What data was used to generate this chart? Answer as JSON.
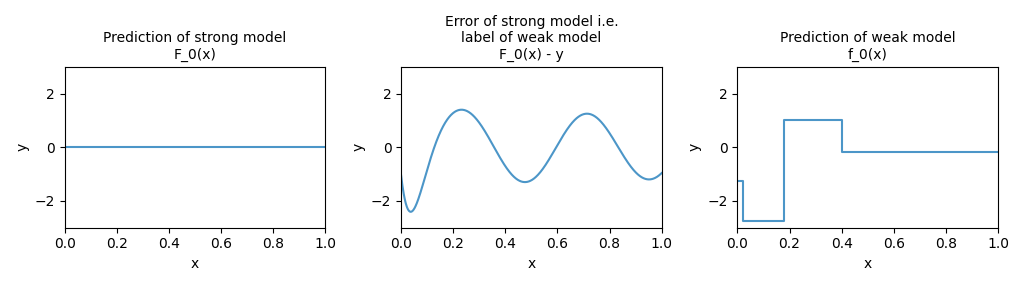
{
  "title1": "Prediction of strong model\nF_0(x)",
  "title2": "Error of strong model i.e.\nlabel of weak model\nF_0(x) - y",
  "title3": "Prediction of weak model\nf_0(x)",
  "xlabel": "x",
  "ylabel": "y",
  "ylim": [
    -3,
    3
  ],
  "xlim": [
    0.0,
    1.0
  ],
  "line_color": "#4C96C8",
  "figsize": [
    10.24,
    2.86
  ],
  "dpi": 100,
  "step_x": [
    0.0,
    0.02,
    0.02,
    0.18,
    0.18,
    0.4,
    0.4,
    1.0
  ],
  "step_y": [
    -1.25,
    -1.25,
    -2.75,
    -2.75,
    1.0,
    1.0,
    -0.18,
    -0.18
  ],
  "sine_n": 1000
}
